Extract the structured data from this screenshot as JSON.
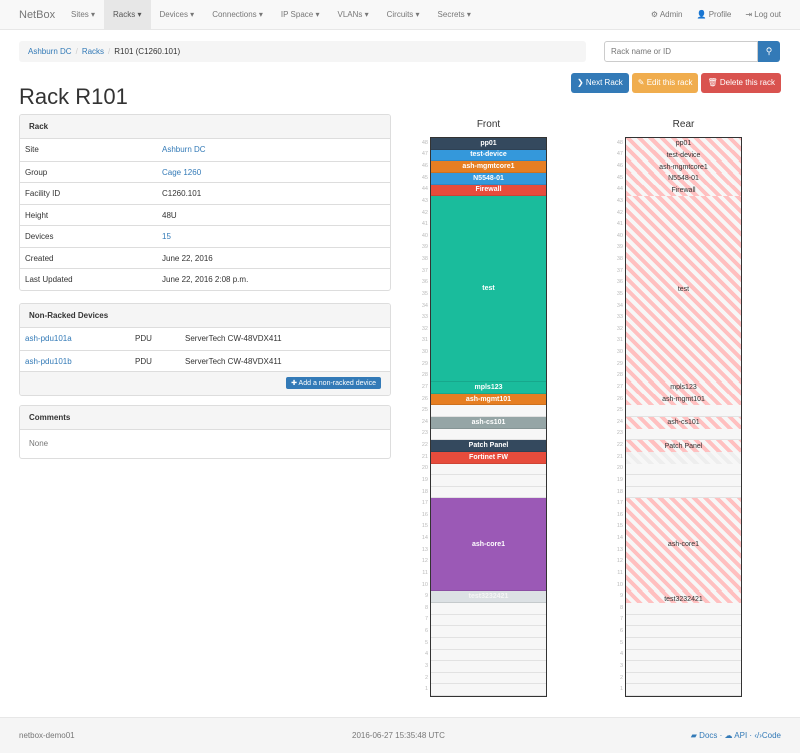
{
  "nav": {
    "brand": "NetBox",
    "menu": [
      "Sites ▾",
      "Racks ▾",
      "Devices ▾",
      "Connections ▾",
      "IP Space ▾",
      "VLANs ▾",
      "Circuits ▾",
      "Secrets ▾"
    ],
    "active": 1,
    "admin": "⚙ Admin",
    "profile": "👤 Profile",
    "logout": "⇥ Log out"
  },
  "breadcrumb": {
    "site": "Ashburn DC",
    "racks": "Racks",
    "current": "R101 (C1260.101)"
  },
  "search": {
    "placeholder": "Rack name or ID",
    "icon": "search-icon"
  },
  "buttons": {
    "next": "❯ Next Rack",
    "edit": "✎ Edit this rack",
    "delete": "🗑 Delete this rack",
    "colors": {
      "next": "#337ab7",
      "edit": "#f0ad4e",
      "delete": "#d9534f"
    }
  },
  "title": "Rack R101",
  "rack_panel": {
    "heading": "Rack",
    "rows": [
      {
        "label": "Site",
        "value": "Ashburn DC",
        "link": true
      },
      {
        "label": "Group",
        "value": "Cage 1260",
        "link": true
      },
      {
        "label": "Facility ID",
        "value": "C1260.101",
        "link": false
      },
      {
        "label": "Height",
        "value": "48U",
        "link": false
      },
      {
        "label": "Devices",
        "value": "15",
        "link": true
      },
      {
        "label": "Created",
        "value": "June 22, 2016",
        "link": false
      },
      {
        "label": "Last Updated",
        "value": "June 22, 2016 2:08 p.m.",
        "link": false
      }
    ]
  },
  "nonracked": {
    "heading": "Non-Racked Devices",
    "rows": [
      {
        "name": "ash-pdu101a",
        "role": "PDU",
        "type": "ServerTech CW-48VDX411"
      },
      {
        "name": "ash-pdu101b",
        "role": "PDU",
        "type": "ServerTech CW-48VDX411"
      }
    ],
    "add": "✚ Add a non-racked device"
  },
  "comments": {
    "heading": "Comments",
    "body": "None"
  },
  "elevation": {
    "units": 48,
    "front_label": "Front",
    "rear_label": "Rear",
    "front": [
      {
        "name": "pp01",
        "top": 48,
        "size": 1,
        "color": "#34495e"
      },
      {
        "name": "test-device",
        "top": 47,
        "size": 1,
        "color": "#3498db"
      },
      {
        "name": "ash-mgmtcore1",
        "top": 46,
        "size": 1,
        "color": "#e67e22"
      },
      {
        "name": "N5548-01",
        "top": 45,
        "size": 1,
        "color": "#3498db"
      },
      {
        "name": "Firewall",
        "top": 44,
        "size": 1,
        "color": "#e74c3c"
      },
      {
        "name": "test",
        "top": 43,
        "size": 16,
        "color": "#1abc9c"
      },
      {
        "name": "mpls123",
        "top": 27,
        "size": 1,
        "color": "#1abc9c"
      },
      {
        "name": "ash-mgmt101",
        "top": 26,
        "size": 1,
        "color": "#e67e22"
      },
      {
        "name": "ash-cs101",
        "top": 24,
        "size": 1,
        "color": "#95a5a6"
      },
      {
        "name": "Patch Panel",
        "top": 22,
        "size": 1,
        "color": "#34495e"
      },
      {
        "name": "Fortinet FW",
        "top": 21,
        "size": 1,
        "color": "#e74c3c"
      },
      {
        "name": "ash-core1",
        "top": 17,
        "size": 8,
        "color": "#9b59b6"
      },
      {
        "name": "test3232421",
        "top": 9,
        "size": 1,
        "color": "#dce1e4"
      }
    ],
    "rear": [
      {
        "name": "pp01",
        "top": 48,
        "size": 1
      },
      {
        "name": "test-device",
        "top": 47,
        "size": 1
      },
      {
        "name": "ash-mgmtcore1",
        "top": 46,
        "size": 1
      },
      {
        "name": "N5548-01",
        "top": 45,
        "size": 1
      },
      {
        "name": "Firewall",
        "top": 44,
        "size": 1
      },
      {
        "name": "test",
        "top": 43,
        "size": 16
      },
      {
        "name": "mpls123",
        "top": 27,
        "size": 1
      },
      {
        "name": "ash-mgmt101",
        "top": 26,
        "size": 1
      },
      {
        "name": "ash-cs101",
        "top": 24,
        "size": 1
      },
      {
        "name": "Patch Panel",
        "top": 22,
        "size": 1
      },
      {
        "name": "",
        "top": 21,
        "size": 1
      },
      {
        "name": "ash-core1",
        "top": 17,
        "size": 8
      },
      {
        "name": "test3232421",
        "top": 9,
        "size": 1
      }
    ]
  },
  "footer": {
    "host": "netbox-demo01",
    "time": "2016-06-27 15:35:48 UTC",
    "docs": "Docs",
    "api": "API",
    "code": "Code"
  }
}
